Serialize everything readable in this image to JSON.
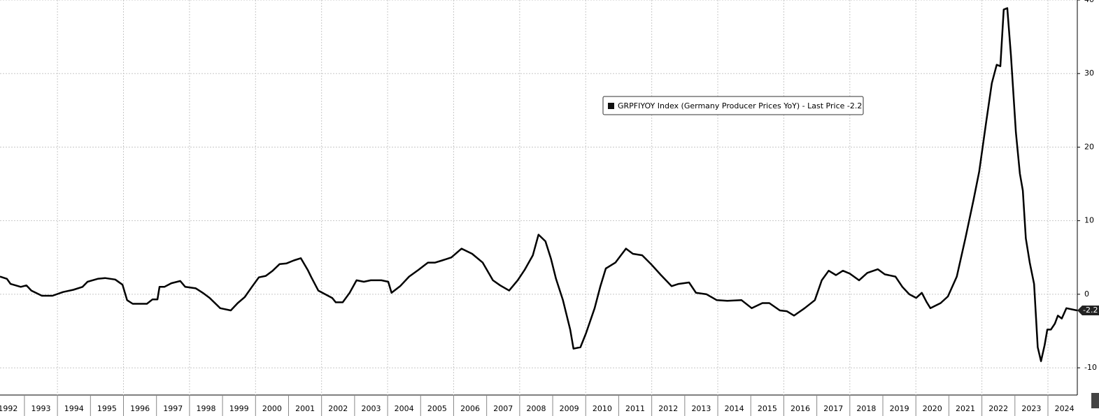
{
  "chart_data": {
    "type": "line",
    "x": [
      1992.26,
      1992.47,
      1992.58,
      1992.89,
      1993.06,
      1993.21,
      1993.53,
      1993.85,
      1994.17,
      1994.48,
      1994.76,
      1994.91,
      1995.22,
      1995.44,
      1995.75,
      1995.97,
      1996.11,
      1996.28,
      1996.71,
      1996.88,
      1997.03,
      1997.09,
      1997.24,
      1997.45,
      1997.72,
      1997.87,
      1998.19,
      1998.4,
      1998.61,
      1998.93,
      1999.25,
      1999.46,
      1999.67,
      1999.89,
      2000.1,
      2000.31,
      2000.52,
      2000.73,
      2000.94,
      2001.16,
      2001.37,
      2001.58,
      2001.69,
      2001.9,
      2002.11,
      2002.32,
      2002.43,
      2002.64,
      2002.85,
      2003.06,
      2003.28,
      2003.49,
      2003.81,
      2004.02,
      2004.12,
      2004.38,
      2004.65,
      2004.93,
      2005.22,
      2005.44,
      2005.65,
      2005.93,
      2006.24,
      2006.56,
      2006.88,
      2007.19,
      2007.41,
      2007.68,
      2007.94,
      2008.15,
      2008.4,
      2008.57,
      2008.78,
      2008.95,
      2009.1,
      2009.31,
      2009.53,
      2009.63,
      2009.84,
      2010.01,
      2010.27,
      2010.44,
      2010.61,
      2010.9,
      2011.22,
      2011.43,
      2011.71,
      2012.0,
      2012.28,
      2012.6,
      2012.81,
      2013.13,
      2013.34,
      2013.66,
      2013.97,
      2014.29,
      2014.72,
      2015.03,
      2015.35,
      2015.56,
      2015.88,
      2016.09,
      2016.31,
      2016.63,
      2016.94,
      2017.15,
      2017.36,
      2017.58,
      2017.79,
      2018.0,
      2018.28,
      2018.53,
      2018.85,
      2019.06,
      2019.38,
      2019.59,
      2019.8,
      2020.01,
      2020.18,
      2020.33,
      2020.44,
      2020.75,
      2020.97,
      2021.24,
      2021.5,
      2021.75,
      2021.92,
      2022.13,
      2022.3,
      2022.45,
      2022.56,
      2022.66,
      2022.77,
      2022.88,
      2023.03,
      2023.15,
      2023.24,
      2023.33,
      2023.45,
      2023.58,
      2023.69,
      2023.79,
      2023.9,
      2023.98,
      2024.09,
      2024.21,
      2024.3,
      2024.42,
      2024.56,
      2024.88
    ],
    "series": [
      {
        "name": "GRPFIYOY Index (Germany Producer Prices YoY) - Last Price -2.2",
        "color": "#000000",
        "values": [
          2.4,
          2.1,
          1.4,
          1.0,
          1.2,
          0.5,
          -0.2,
          -0.2,
          0.3,
          0.6,
          1.0,
          1.7,
          2.1,
          2.2,
          2.0,
          1.3,
          -0.8,
          -1.3,
          -1.3,
          -0.7,
          -0.7,
          1.0,
          1.0,
          1.5,
          1.8,
          1.0,
          0.8,
          0.2,
          -0.5,
          -1.9,
          -2.2,
          -1.2,
          -0.4,
          1.0,
          2.3,
          2.5,
          3.2,
          4.1,
          4.2,
          4.6,
          4.9,
          3.3,
          2.3,
          0.5,
          0,
          -0.5,
          -1.1,
          -1.1,
          0.2,
          1.9,
          1.7,
          1.9,
          1.9,
          1.7,
          0.2,
          1.1,
          2.4,
          3.3,
          4.3,
          4.3,
          4.6,
          5.0,
          6.2,
          5.5,
          4.3,
          1.9,
          1.2,
          0.5,
          1.9,
          3.3,
          5.3,
          8.1,
          7.2,
          4.8,
          2.1,
          -0.8,
          -4.8,
          -7.4,
          -7.2,
          -5.3,
          -1.9,
          1.0,
          3.5,
          4.3,
          6.2,
          5.5,
          5.3,
          4.0,
          2.6,
          1.1,
          1.4,
          1.6,
          0.2,
          0,
          -0.8,
          -0.9,
          -0.8,
          -1.9,
          -1.2,
          -1.2,
          -2.2,
          -2.3,
          -2.9,
          -1.9,
          -0.8,
          1.9,
          3.2,
          2.6,
          3.2,
          2.8,
          1.9,
          2.9,
          3.4,
          2.7,
          2.4,
          1.0,
          0,
          -0.5,
          0.2,
          -1.1,
          -1.9,
          -1.2,
          -0.3,
          2.4,
          7.6,
          12.9,
          16.7,
          23.4,
          28.7,
          31.2,
          31.0,
          38.7,
          38.9,
          32.5,
          22.0,
          16.4,
          14.1,
          7.6,
          4.3,
          1.4,
          -7.2,
          -9.1,
          -6.9,
          -4.8,
          -4.8,
          -4.0,
          -2.9,
          -3.3,
          -1.9,
          -2.2
        ]
      }
    ],
    "xlim": [
      1992.26,
      2024.89
    ],
    "xticks": [
      1992,
      1993,
      1994,
      1995,
      1996,
      1997,
      1998,
      1999,
      2000,
      2001,
      2002,
      2003,
      2004,
      2005,
      2006,
      2007,
      2008,
      2009,
      2010,
      2011,
      2012,
      2013,
      2014,
      2015,
      2016,
      2017,
      2018,
      2019,
      2020,
      2021,
      2022,
      2023,
      2024
    ],
    "ylim": [
      -13.7,
      40
    ],
    "yticks": [
      40,
      30,
      20,
      10,
      0,
      -10
    ],
    "grid": true
  }
}
